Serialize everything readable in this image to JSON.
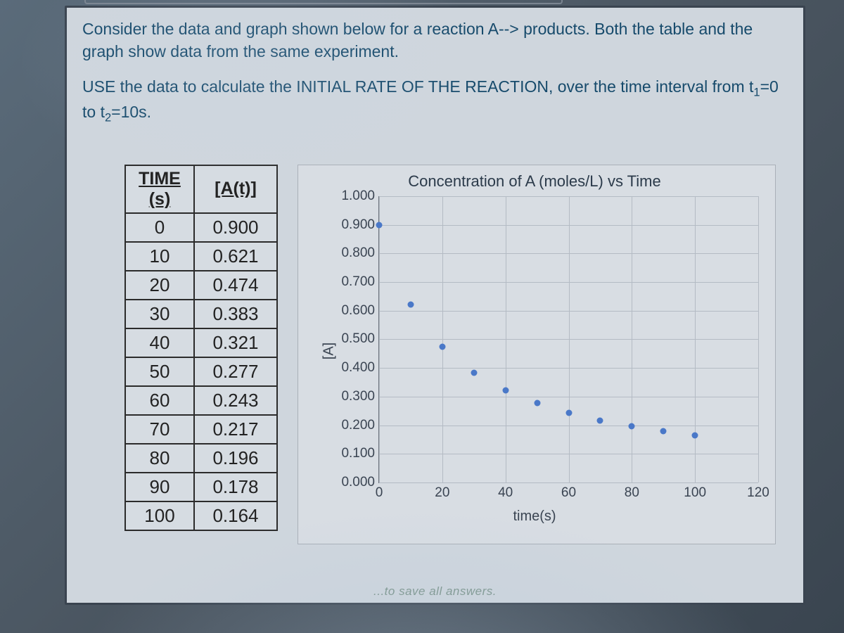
{
  "problem": {
    "line1": "Consider the data and graph shown below for a reaction A--> products. Both the table and the graph show data from the same experiment.",
    "line2_prefix": "USE the data to calculate the INITIAL RATE OF THE REACTION, over the time interval from t",
    "line2_sub1": "1",
    "line2_mid": "=0 to t",
    "line2_sub2": "2",
    "line2_suffix": "=10s."
  },
  "table": {
    "header_time": "TIME (s)",
    "header_conc": "[A(t)]",
    "rows": [
      {
        "t": "0",
        "a": "0.900"
      },
      {
        "t": "10",
        "a": "0.621"
      },
      {
        "t": "20",
        "a": "0.474"
      },
      {
        "t": "30",
        "a": "0.383"
      },
      {
        "t": "40",
        "a": "0.321"
      },
      {
        "t": "50",
        "a": "0.277"
      },
      {
        "t": "60",
        "a": "0.243"
      },
      {
        "t": "70",
        "a": "0.217"
      },
      {
        "t": "80",
        "a": "0.196"
      },
      {
        "t": "90",
        "a": "0.178"
      },
      {
        "t": "100",
        "a": "0.164"
      }
    ]
  },
  "chart": {
    "type": "scatter",
    "title": "Concentration of A (moles/L) vs Time",
    "xlabel": "time(s)",
    "ylabel": "[A]",
    "xlim": [
      0,
      120
    ],
    "ylim": [
      0,
      1.0
    ],
    "xtick_step": 20,
    "ytick_step": 0.1,
    "xticks": [
      "0",
      "20",
      "40",
      "60",
      "80",
      "100",
      "120"
    ],
    "yticks": [
      "0.000",
      "0.100",
      "0.200",
      "0.300",
      "0.400",
      "0.500",
      "0.600",
      "0.700",
      "0.800",
      "0.900",
      "1.000"
    ],
    "grid_color": "#b4bbc4",
    "background_color": "#d8dde3",
    "marker_color": "#4a78c8",
    "marker_size": 9,
    "points": [
      {
        "x": 0,
        "y": 0.9
      },
      {
        "x": 10,
        "y": 0.621
      },
      {
        "x": 20,
        "y": 0.474
      },
      {
        "x": 30,
        "y": 0.383
      },
      {
        "x": 40,
        "y": 0.321
      },
      {
        "x": 50,
        "y": 0.277
      },
      {
        "x": 60,
        "y": 0.243
      },
      {
        "x": 70,
        "y": 0.217
      },
      {
        "x": 80,
        "y": 0.196
      },
      {
        "x": 90,
        "y": 0.178
      },
      {
        "x": 100,
        "y": 0.164
      }
    ]
  },
  "footer": "...to save all answers."
}
